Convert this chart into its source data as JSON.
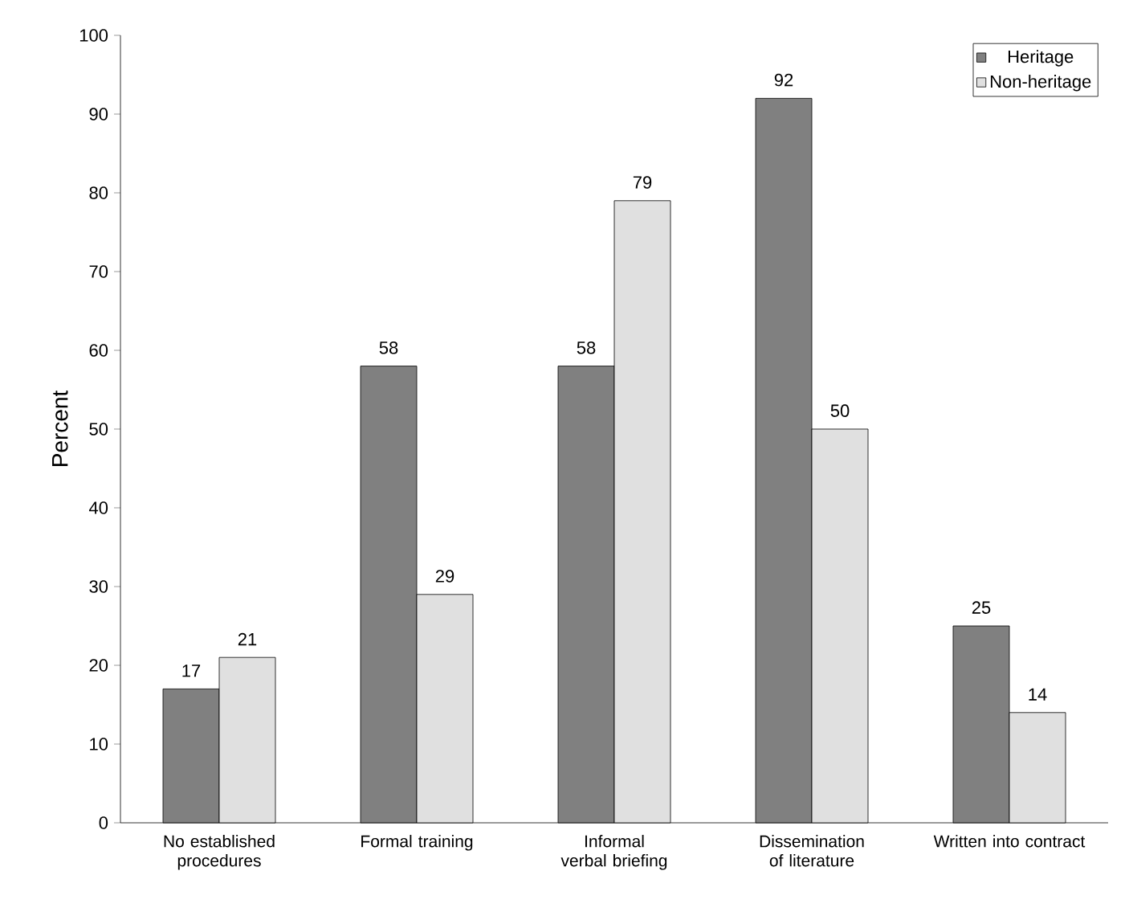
{
  "chart_data": {
    "type": "bar",
    "ylabel": "Percent",
    "categories": [
      "No established procedures",
      "Formal training",
      "Informal verbal briefing",
      "Dissemination of literature",
      "Written into contract"
    ],
    "series": [
      {
        "name": "Heritage",
        "color": "#808080",
        "values": [
          17,
          58,
          58,
          92,
          25
        ]
      },
      {
        "name": "Non-heritage",
        "color": "#e0e0e0",
        "values": [
          21,
          29,
          79,
          50,
          14
        ]
      }
    ],
    "ylim": [
      0,
      100
    ],
    "yticks": [
      0,
      10,
      20,
      30,
      40,
      50,
      60,
      70,
      80,
      90,
      100
    ],
    "grid": false,
    "legend": "top right",
    "data_labels": true
  }
}
